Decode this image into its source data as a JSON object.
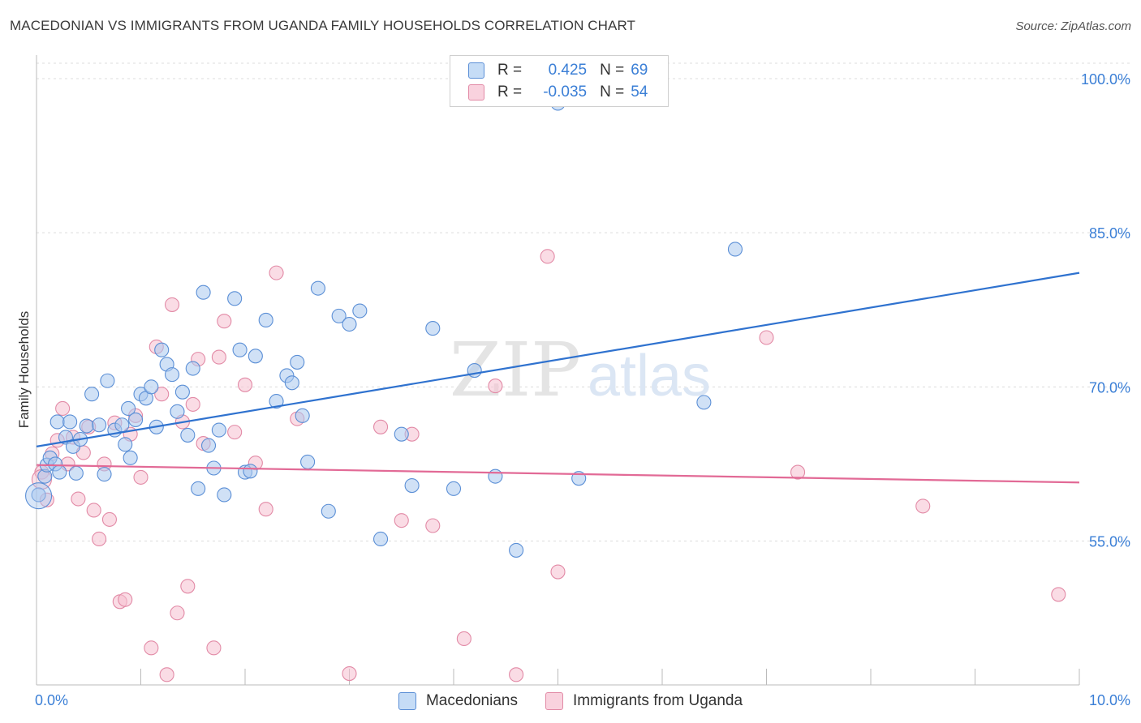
{
  "title": "MACEDONIAN VS IMMIGRANTS FROM UGANDA FAMILY HOUSEHOLDS CORRELATION CHART",
  "source": "Source: ZipAtlas.com",
  "watermark": {
    "zip": "ZIP",
    "atlas": "atlas"
  },
  "legend_top": [
    {
      "r_label": "R =",
      "r_value": "0.425",
      "n_label": "N =",
      "n_value": "69"
    },
    {
      "r_label": "R =",
      "r_value": "-0.035",
      "n_label": "N =",
      "n_value": "54"
    }
  ],
  "colors": {
    "blue_fill": "#a9c8ef",
    "blue_stroke": "#5b8fd6",
    "blue_line": "#2f72cf",
    "pink_fill": "#f5bfd0",
    "pink_stroke": "#e28aa6",
    "pink_line": "#e26a96",
    "tick_text": "#3b7fd6",
    "grid": "#dcdcdc"
  },
  "chart_data": {
    "type": "scatter",
    "ylabel": "Family Households",
    "xlim": [
      0,
      10
    ],
    "ylim": [
      41,
      101.5
    ],
    "x_tick_labels": [
      "0.0%",
      "10.0%"
    ],
    "y_ticks": [
      55,
      70,
      85,
      100
    ],
    "y_tick_labels": [
      "55.0%",
      "70.0%",
      "85.0%",
      "100.0%"
    ],
    "legend_placement": "top-center",
    "grid": true,
    "series": [
      {
        "name": "Macedonians",
        "color": "#5b8fd6",
        "trend": {
          "x": [
            0,
            10
          ],
          "y": [
            64.2,
            81.1
          ]
        },
        "points": [
          [
            0.02,
            59.5
          ],
          [
            0.08,
            61.3
          ],
          [
            0.1,
            62.4
          ],
          [
            0.13,
            63.1
          ],
          [
            0.18,
            62.5
          ],
          [
            0.2,
            66.6
          ],
          [
            0.22,
            61.7
          ],
          [
            0.28,
            65.1
          ],
          [
            0.32,
            66.6
          ],
          [
            0.35,
            64.2
          ],
          [
            0.38,
            61.6
          ],
          [
            0.42,
            64.9
          ],
          [
            0.48,
            66.2
          ],
          [
            0.53,
            69.3
          ],
          [
            0.6,
            66.3
          ],
          [
            0.65,
            61.5
          ],
          [
            0.68,
            70.6
          ],
          [
            0.75,
            65.8
          ],
          [
            0.82,
            66.3
          ],
          [
            0.85,
            64.4
          ],
          [
            0.88,
            67.9
          ],
          [
            0.9,
            63.1
          ],
          [
            0.95,
            66.8
          ],
          [
            1.0,
            69.3
          ],
          [
            1.05,
            68.9
          ],
          [
            1.1,
            70.0
          ],
          [
            1.15,
            66.1
          ],
          [
            1.2,
            73.6
          ],
          [
            1.25,
            72.2
          ],
          [
            1.3,
            71.2
          ],
          [
            1.35,
            67.6
          ],
          [
            1.4,
            69.5
          ],
          [
            1.45,
            65.3
          ],
          [
            1.5,
            71.8
          ],
          [
            1.55,
            60.1
          ],
          [
            1.6,
            79.2
          ],
          [
            1.65,
            64.3
          ],
          [
            1.7,
            62.1
          ],
          [
            1.75,
            65.8
          ],
          [
            1.8,
            59.5
          ],
          [
            1.9,
            78.6
          ],
          [
            1.95,
            73.6
          ],
          [
            2.0,
            61.7
          ],
          [
            2.05,
            61.8
          ],
          [
            2.1,
            73.0
          ],
          [
            2.2,
            76.5
          ],
          [
            2.3,
            68.6
          ],
          [
            2.4,
            71.1
          ],
          [
            2.45,
            70.4
          ],
          [
            2.5,
            72.4
          ],
          [
            2.55,
            67.2
          ],
          [
            2.6,
            62.7
          ],
          [
            2.7,
            79.6
          ],
          [
            2.8,
            57.9
          ],
          [
            2.9,
            76.9
          ],
          [
            3.0,
            76.1
          ],
          [
            3.1,
            77.4
          ],
          [
            3.3,
            55.2
          ],
          [
            3.5,
            65.4
          ],
          [
            3.6,
            60.4
          ],
          [
            3.8,
            75.7
          ],
          [
            4.0,
            60.1
          ],
          [
            4.2,
            71.6
          ],
          [
            4.4,
            61.3
          ],
          [
            4.6,
            54.1
          ],
          [
            5.0,
            97.6
          ],
          [
            5.2,
            61.1
          ],
          [
            6.4,
            68.5
          ],
          [
            6.7,
            83.4
          ]
        ]
      },
      {
        "name": "Immigrants from Uganda",
        "color": "#e28aa6",
        "trend": {
          "x": [
            0,
            10
          ],
          "y": [
            62.4,
            60.7
          ]
        },
        "points": [
          [
            0.05,
            61.7
          ],
          [
            0.1,
            59.0
          ],
          [
            0.15,
            63.5
          ],
          [
            0.2,
            64.8
          ],
          [
            0.25,
            67.9
          ],
          [
            0.3,
            62.5
          ],
          [
            0.35,
            65.1
          ],
          [
            0.4,
            59.1
          ],
          [
            0.45,
            63.6
          ],
          [
            0.5,
            66.1
          ],
          [
            0.55,
            58.0
          ],
          [
            0.6,
            55.2
          ],
          [
            0.65,
            62.5
          ],
          [
            0.7,
            57.1
          ],
          [
            0.75,
            66.5
          ],
          [
            0.8,
            49.1
          ],
          [
            0.85,
            49.3
          ],
          [
            0.9,
            65.4
          ],
          [
            0.95,
            67.2
          ],
          [
            1.0,
            61.2
          ],
          [
            1.1,
            44.6
          ],
          [
            1.15,
            73.9
          ],
          [
            1.2,
            69.3
          ],
          [
            1.25,
            42.0
          ],
          [
            1.3,
            78.0
          ],
          [
            1.35,
            48.0
          ],
          [
            1.4,
            66.6
          ],
          [
            1.45,
            50.6
          ],
          [
            1.5,
            68.3
          ],
          [
            1.55,
            72.7
          ],
          [
            1.6,
            64.5
          ],
          [
            1.7,
            44.6
          ],
          [
            1.75,
            72.9
          ],
          [
            1.8,
            76.4
          ],
          [
            1.9,
            65.6
          ],
          [
            2.0,
            70.2
          ],
          [
            2.1,
            62.6
          ],
          [
            2.2,
            58.1
          ],
          [
            2.3,
            81.1
          ],
          [
            2.5,
            66.9
          ],
          [
            3.0,
            42.1
          ],
          [
            3.3,
            66.1
          ],
          [
            3.5,
            57.0
          ],
          [
            3.6,
            65.4
          ],
          [
            3.8,
            56.5
          ],
          [
            4.1,
            45.5
          ],
          [
            4.4,
            70.1
          ],
          [
            4.6,
            42.0
          ],
          [
            4.9,
            82.7
          ],
          [
            5.0,
            52.0
          ],
          [
            7.0,
            74.8
          ],
          [
            7.3,
            61.7
          ],
          [
            8.5,
            58.4
          ],
          [
            9.8,
            49.8
          ]
        ]
      }
    ]
  }
}
